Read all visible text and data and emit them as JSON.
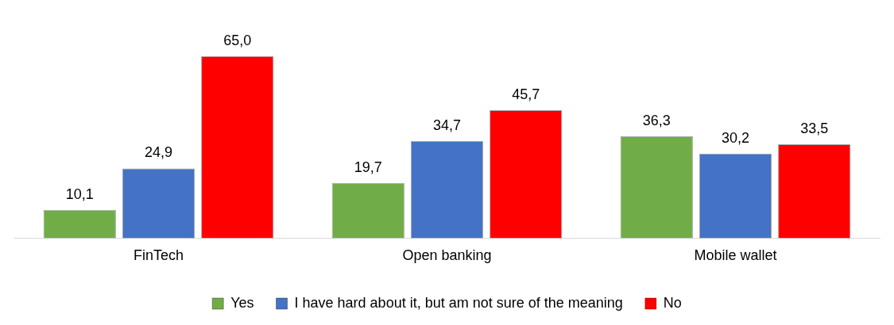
{
  "chart_data": {
    "type": "bar",
    "categories": [
      "FinTech",
      "Open banking",
      "Mobile wallet"
    ],
    "series": [
      {
        "name": "Yes",
        "color": "#70ad47",
        "values": [
          10.1,
          19.7,
          36.3
        ],
        "value_labels": [
          "10,1",
          "19,7",
          "36,3"
        ]
      },
      {
        "name": "I have hard about it, but am not sure of the meaning",
        "color": "#4472c4",
        "values": [
          24.9,
          34.7,
          30.2
        ],
        "value_labels": [
          "24,9",
          "34,7",
          "30,2"
        ]
      },
      {
        "name": "No",
        "color": "#ff0000",
        "values": [
          65.0,
          45.7,
          33.5
        ],
        "value_labels": [
          "65,0",
          "45,7",
          "33,5"
        ]
      }
    ],
    "legend": "bottom",
    "tick_labels": "x",
    "grid": false
  }
}
